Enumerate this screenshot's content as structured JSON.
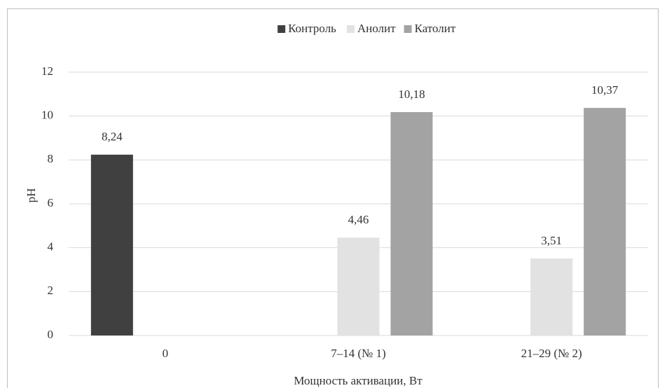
{
  "chart_data": {
    "type": "bar",
    "categories": [
      "0",
      "7–14 (№ 1)",
      "21–29 (№ 2)"
    ],
    "series": [
      {
        "name": "Контроль",
        "color": "#404040",
        "values": [
          8.24,
          null,
          null
        ],
        "value_labels": [
          "8,24",
          null,
          null
        ]
      },
      {
        "name": "Анолит",
        "color": "#e2e2e2",
        "values": [
          null,
          4.46,
          3.51
        ],
        "value_labels": [
          null,
          "4,46",
          "3,51"
        ]
      },
      {
        "name": "Католит",
        "color": "#a3a3a3",
        "values": [
          null,
          10.18,
          10.37
        ],
        "value_labels": [
          null,
          "10,18",
          "10,37"
        ]
      }
    ],
    "xlabel": "Мощность активации, Вт",
    "ylabel": "pH",
    "ylim": [
      0,
      12
    ],
    "yticks": [
      0,
      2,
      4,
      6,
      8,
      10,
      12
    ],
    "grid": true,
    "legend": "top"
  }
}
